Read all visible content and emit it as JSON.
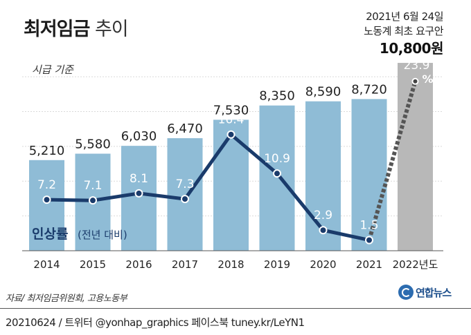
{
  "header": {
    "title_bold": "최저임금",
    "title_light": "추이"
  },
  "note": {
    "line1": "2021년 6월 24일",
    "line2": "노동계 최초 요구안",
    "highlight": "10,800원"
  },
  "source": "자료/ 최저임금위원회, 고용노동부",
  "logo": {
    "name": "연합뉴스",
    "icon": "yonhap-logo-icon"
  },
  "footer": "20210624 / 트위터 @yonhap_graphics  페이스북 tuney.kr/LeYN1",
  "colors": {
    "bar": "#8fbcd6",
    "bar_proposal": "#b8b8b8",
    "line": "#1a3b6b",
    "label_on_bar": "#ffffff"
  },
  "chart_data": {
    "type": "bar",
    "categories": [
      "2014",
      "2015",
      "2016",
      "2017",
      "2018",
      "2019",
      "2020",
      "2021",
      "2022년도"
    ],
    "ylabel": "시급 기준",
    "series": [
      {
        "values": [
          5210,
          5580,
          6030,
          6470,
          7530,
          8350,
          8590,
          8720,
          10800
        ],
        "value_labels": [
          "5,210",
          "5,580",
          "6,030",
          "6,470",
          "7,530",
          "8,350",
          "8,590",
          "8,720",
          ""
        ]
      },
      {
        "name": "인상률",
        "name_note": "(전년 대비)",
        "type": "line",
        "values": [
          7.2,
          7.1,
          8.1,
          7.3,
          16.4,
          10.9,
          2.9,
          1.5,
          23.9
        ],
        "value_labels": [
          "7.2",
          "7.1",
          "8.1",
          "7.3",
          "16.4",
          "10.9",
          "2.9",
          "1.5",
          "23.9"
        ],
        "last_label_unit": "%",
        "last_segment_dashed": true
      }
    ],
    "ylim": [
      0,
      11000
    ],
    "rate_ylim": [
      0,
      27
    ],
    "grid": true
  }
}
